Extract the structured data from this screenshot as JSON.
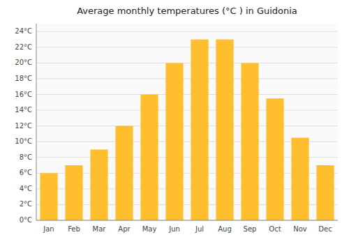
{
  "chart_data": {
    "type": "bar",
    "title": "Average monthly temperatures (°C ) in Guidonia",
    "categories": [
      "Jan",
      "Feb",
      "Mar",
      "Apr",
      "May",
      "Jun",
      "Jul",
      "Aug",
      "Sep",
      "Oct",
      "Nov",
      "Dec"
    ],
    "values": [
      6.0,
      7.0,
      9.0,
      12.0,
      16.0,
      20.0,
      23.0,
      23.0,
      20.0,
      15.5,
      10.5,
      7.0
    ],
    "color": "#FFBE2D",
    "ylim": [
      0,
      25
    ],
    "yticks": [
      {
        "value": 0,
        "label": "0°C"
      },
      {
        "value": 2,
        "label": "2°C"
      },
      {
        "value": 4,
        "label": "4°C"
      },
      {
        "value": 6,
        "label": "6°C"
      },
      {
        "value": 8,
        "label": "8°C"
      },
      {
        "value": 10,
        "label": "10°C"
      },
      {
        "value": 12,
        "label": "12°C"
      },
      {
        "value": 14,
        "label": "14°C"
      },
      {
        "value": 16,
        "label": "16°C"
      },
      {
        "value": 18,
        "label": "18°C"
      },
      {
        "value": 20,
        "label": "20°C"
      },
      {
        "value": 22,
        "label": "22°C"
      },
      {
        "value": 24,
        "label": "24°C"
      }
    ],
    "grid": true
  }
}
